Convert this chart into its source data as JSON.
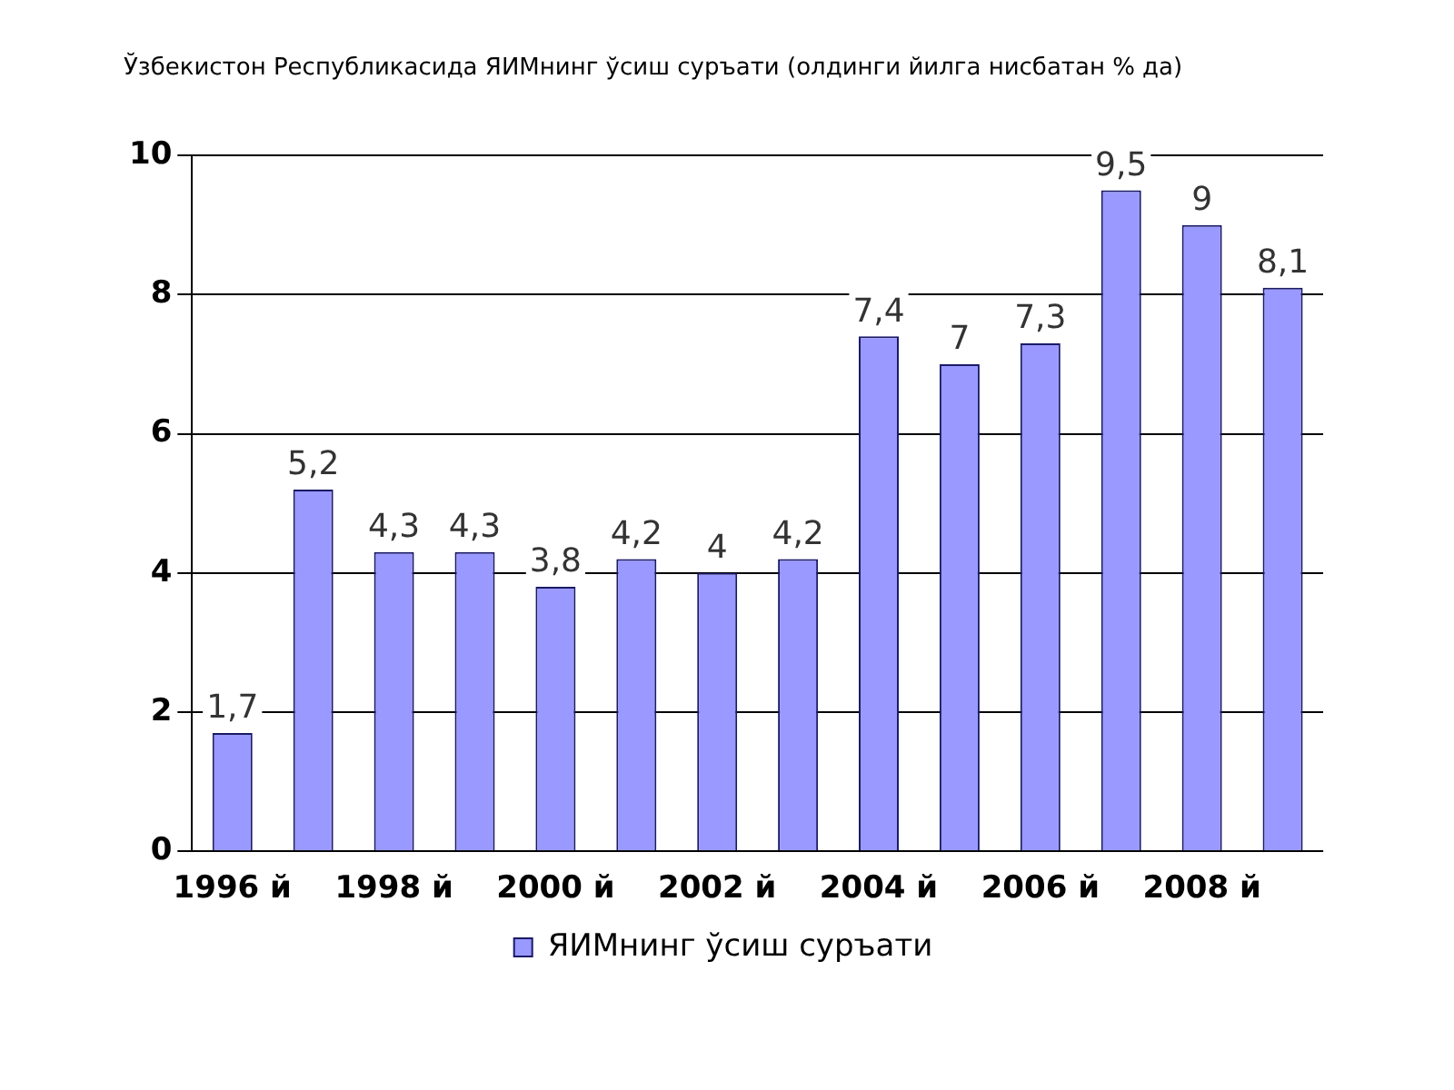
{
  "chart_data": {
    "type": "bar",
    "title": "Ўзбекистон Республикасида ЯИМнинг ўсиш суръати (олдинги йилга нисбатан % да)",
    "categories": [
      "1996 й",
      null,
      "1998 й",
      null,
      "2000 й",
      null,
      "2002 й",
      null,
      "2004 й",
      null,
      "2006 й",
      null,
      "2008 й",
      null
    ],
    "series": [
      {
        "name": "ЯИМнинг ўсиш суръати",
        "color": "#9999ff",
        "values": [
          1.7,
          5.2,
          4.3,
          4.3,
          3.8,
          4.2,
          4,
          4.2,
          7.4,
          7,
          7.3,
          9.5,
          9,
          8.1
        ],
        "value_labels": [
          "1,7",
          "5,2",
          "4,3",
          "4,3",
          "3,8",
          "4,2",
          "4",
          "4,2",
          "7,4",
          "7",
          "7,3",
          "9,5",
          "9",
          "8,1"
        ]
      }
    ],
    "ylim": [
      0,
      10
    ],
    "yticks": [
      0,
      2,
      4,
      6,
      8,
      10
    ],
    "grid": "y",
    "legend": "bottom"
  }
}
